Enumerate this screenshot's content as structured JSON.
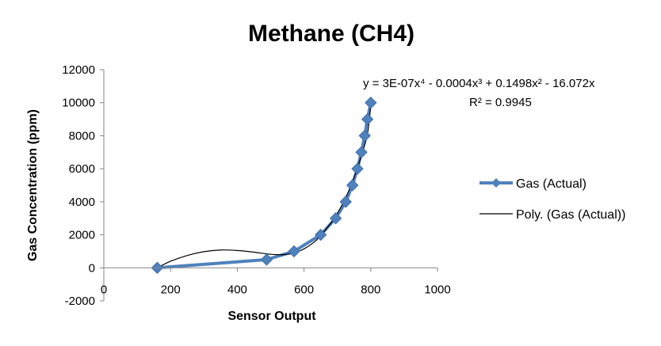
{
  "chart_data": {
    "type": "scatter",
    "title": "Methane (CH4)",
    "xlabel": "Sensor Output",
    "ylabel": "Gas Concentration (ppm)",
    "xlim": [
      0,
      1000
    ],
    "ylim": [
      -2000,
      12000
    ],
    "x_ticks": [
      "0",
      "200",
      "400",
      "600",
      "800",
      "1000"
    ],
    "y_ticks": [
      "-2000",
      "0",
      "2000",
      "4000",
      "6000",
      "8000",
      "10000",
      "12000"
    ],
    "x_tick_values": [
      0,
      200,
      400,
      600,
      800,
      1000
    ],
    "y_tick_values": [
      -2000,
      0,
      2000,
      4000,
      6000,
      8000,
      10000,
      12000
    ],
    "grid": false,
    "legend_position": "right",
    "series": [
      {
        "name": "Gas (Actual)",
        "color": "#4F81BD",
        "marker": "diamond",
        "x": [
          160,
          488,
          570,
          650,
          695,
          725,
          745,
          760,
          772,
          782,
          790,
          800
        ],
        "y": [
          0,
          500,
          1000,
          2000,
          3000,
          4000,
          5000,
          6000,
          7000,
          8000,
          9000,
          10000
        ]
      }
    ],
    "trendline": {
      "name": "Poly. (Gas (Actual))",
      "color": "#000000",
      "equation": "y = 3E-07x⁴ - 0.0004x³ + 0.1498x² - 16.072x",
      "r_squared": "R² = 0.9945",
      "x": [
        160,
        200,
        250,
        300,
        350,
        400,
        450,
        500,
        540,
        570,
        600,
        630,
        650,
        680,
        700,
        720,
        740,
        760,
        775,
        790,
        800
      ],
      "y": [
        0,
        400,
        750,
        980,
        1080,
        1050,
        950,
        820,
        800,
        900,
        1150,
        1550,
        1950,
        2700,
        3300,
        4050,
        4950,
        6050,
        7000,
        8100,
        9800
      ]
    }
  }
}
